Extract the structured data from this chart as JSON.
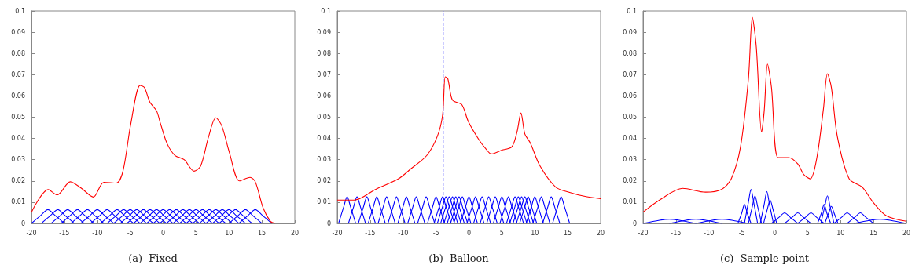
{
  "chart_data": [
    {
      "type": "line",
      "title": "(a)  Fixed",
      "xlim": [
        -20,
        20
      ],
      "xticks": [
        -20,
        -15,
        -10,
        -5,
        0,
        5,
        10,
        15,
        20
      ],
      "ylim": [
        0,
        0.1
      ],
      "yticks": [
        0,
        0.01,
        0.02,
        0.03,
        0.04,
        0.05,
        0.06,
        0.07,
        0.08,
        0.09,
        0.1
      ],
      "series": [
        {
          "color": "#0000ff",
          "x": [
            -20,
            -18.5,
            -17.5,
            -16.5,
            -15
          ],
          "values": [
            0,
            0.004,
            0.0065,
            0.004,
            0
          ]
        },
        {
          "color": "#0000ff",
          "x": [
            -18.5,
            -17,
            -16,
            -15,
            -13.5
          ],
          "values": [
            0,
            0.004,
            0.0065,
            0.004,
            0
          ]
        },
        {
          "color": "#0000ff",
          "x": [
            -17,
            -15.5,
            -14.5,
            -13.5,
            -12
          ],
          "values": [
            0,
            0.004,
            0.0065,
            0.004,
            0
          ]
        },
        {
          "color": "#0000ff",
          "x": [
            -15.5,
            -14,
            -13,
            -12,
            -10.5
          ],
          "values": [
            0,
            0.004,
            0.0065,
            0.004,
            0
          ]
        },
        {
          "color": "#0000ff",
          "x": [
            -14,
            -12.5,
            -11.5,
            -10.5,
            -9
          ],
          "values": [
            0,
            0.004,
            0.0065,
            0.004,
            0
          ]
        },
        {
          "color": "#0000ff",
          "x": [
            -12.5,
            -11,
            -10,
            -9,
            -7.5
          ],
          "values": [
            0,
            0.004,
            0.0065,
            0.004,
            0
          ]
        },
        {
          "color": "#0000ff",
          "x": [
            -11,
            -9.5,
            -8.5,
            -7.5,
            -6
          ],
          "values": [
            0,
            0.004,
            0.0065,
            0.004,
            0
          ]
        },
        {
          "color": "#0000ff",
          "x": [
            -9.5,
            -8,
            -7,
            -6,
            -4.5
          ],
          "values": [
            0,
            0.004,
            0.0065,
            0.004,
            0
          ]
        },
        {
          "color": "#0000ff",
          "x": [
            -8.5,
            -7,
            -6,
            -5,
            -3.5
          ],
          "values": [
            0,
            0.004,
            0.0065,
            0.004,
            0
          ]
        },
        {
          "color": "#0000ff",
          "x": [
            -7.5,
            -6,
            -5,
            -4,
            -2.5
          ],
          "values": [
            0,
            0.004,
            0.0065,
            0.004,
            0
          ]
        },
        {
          "color": "#0000ff",
          "x": [
            -6.5,
            -5,
            -4,
            -3,
            -1.5
          ],
          "values": [
            0,
            0.004,
            0.0065,
            0.004,
            0
          ]
        },
        {
          "color": "#0000ff",
          "x": [
            -5.5,
            -4,
            -3,
            -2,
            -0.5
          ],
          "values": [
            0,
            0.004,
            0.0065,
            0.004,
            0
          ]
        },
        {
          "color": "#0000ff",
          "x": [
            -4.5,
            -3,
            -2,
            -1,
            0.5
          ],
          "values": [
            0,
            0.004,
            0.0065,
            0.004,
            0
          ]
        },
        {
          "color": "#0000ff",
          "x": [
            -3.5,
            -2,
            -1,
            0,
            1.5
          ],
          "values": [
            0,
            0.004,
            0.0065,
            0.004,
            0
          ]
        },
        {
          "color": "#0000ff",
          "x": [
            -2.5,
            -1,
            0,
            1,
            2.5
          ],
          "values": [
            0,
            0.004,
            0.0065,
            0.004,
            0
          ]
        },
        {
          "color": "#0000ff",
          "x": [
            -1.5,
            0,
            1,
            2,
            3.5
          ],
          "values": [
            0,
            0.004,
            0.0065,
            0.004,
            0
          ]
        },
        {
          "color": "#0000ff",
          "x": [
            -0.5,
            1,
            2,
            3,
            4.5
          ],
          "values": [
            0,
            0.004,
            0.0065,
            0.004,
            0
          ]
        },
        {
          "color": "#0000ff",
          "x": [
            0.5,
            2,
            3,
            4,
            5.5
          ],
          "values": [
            0,
            0.004,
            0.0065,
            0.004,
            0
          ]
        },
        {
          "color": "#0000ff",
          "x": [
            1.5,
            3,
            4,
            5,
            6.5
          ],
          "values": [
            0,
            0.004,
            0.0065,
            0.004,
            0
          ]
        },
        {
          "color": "#0000ff",
          "x": [
            2.5,
            4,
            5,
            6,
            7.5
          ],
          "values": [
            0,
            0.004,
            0.0065,
            0.004,
            0
          ]
        },
        {
          "color": "#0000ff",
          "x": [
            3.5,
            5,
            6,
            7,
            8.5
          ],
          "values": [
            0,
            0.004,
            0.0065,
            0.004,
            0
          ]
        },
        {
          "color": "#0000ff",
          "x": [
            4.5,
            6,
            7,
            8,
            9.5
          ],
          "values": [
            0,
            0.004,
            0.0065,
            0.004,
            0
          ]
        },
        {
          "color": "#0000ff",
          "x": [
            5.5,
            7,
            8,
            9,
            10.5
          ],
          "values": [
            0,
            0.004,
            0.0065,
            0.004,
            0
          ]
        },
        {
          "color": "#0000ff",
          "x": [
            6.5,
            8,
            9,
            10,
            11.5
          ],
          "values": [
            0,
            0.004,
            0.0065,
            0.004,
            0
          ]
        },
        {
          "color": "#0000ff",
          "x": [
            7.5,
            9,
            10,
            11,
            12.5
          ],
          "values": [
            0,
            0.004,
            0.0065,
            0.004,
            0
          ]
        },
        {
          "color": "#0000ff",
          "x": [
            8.5,
            10,
            11,
            12,
            13.5
          ],
          "values": [
            0,
            0.004,
            0.0065,
            0.004,
            0
          ]
        },
        {
          "color": "#0000ff",
          "x": [
            10,
            11.5,
            12.5,
            13.5,
            15
          ],
          "values": [
            0,
            0.004,
            0.0065,
            0.004,
            0
          ]
        },
        {
          "color": "#0000ff",
          "x": [
            11.5,
            13,
            14,
            15,
            16.5
          ],
          "values": [
            0,
            0.004,
            0.0065,
            0.004,
            0
          ]
        },
        {
          "color": "#ff0000",
          "x": [
            -20,
            -17.45,
            -16.1,
            -14.1,
            -12.4,
            -10.6,
            -9,
            -7.1,
            -6.1,
            -4.9,
            -3.5,
            -2.85,
            -2,
            -1,
            -0.4,
            0.6,
            1.8,
            3.2,
            4.7,
            5.7,
            6.9,
            8,
            8.9,
            10.1,
            11.6,
            13.2,
            14,
            15.2,
            16.3,
            17
          ],
          "values": [
            0.0053,
            0.0159,
            0.0134,
            0.0196,
            0.0165,
            0.0124,
            0.0194,
            0.019,
            0.0246,
            0.047,
            0.065,
            0.064,
            0.057,
            0.053,
            0.047,
            0.0376,
            0.032,
            0.03,
            0.0246,
            0.027,
            0.0407,
            0.0497,
            0.046,
            0.033,
            0.02,
            0.0217,
            0.0196,
            0.0072,
            0.001,
            0
          ]
        }
      ]
    },
    {
      "type": "line",
      "title": "(b)  Balloon",
      "xlim": [
        -20,
        20
      ],
      "xticks": [
        -20,
        -15,
        -10,
        -5,
        0,
        5,
        10,
        15,
        20
      ],
      "ylim": [
        0,
        0.1
      ],
      "yticks": [
        0,
        0.01,
        0.02,
        0.03,
        0.04,
        0.05,
        0.06,
        0.07,
        0.08,
        0.09,
        0.1
      ],
      "ref_lines": [
        {
          "axis": "x",
          "value": -3.9,
          "color": "#6666ff",
          "line_style": "dashed"
        }
      ],
      "series": [
        {
          "color": "#0000ff",
          "x": [
            -19.8,
            -19,
            -18.5,
            -18,
            -17.2
          ],
          "values": [
            0,
            0.008,
            0.0125,
            0.008,
            0
          ]
        },
        {
          "color": "#0000ff",
          "x": [
            -18.3,
            -17.5,
            -17,
            -16.5,
            -15.7
          ],
          "values": [
            0,
            0.008,
            0.0125,
            0.008,
            0
          ]
        },
        {
          "color": "#0000ff",
          "x": [
            -16.8,
            -16,
            -15.5,
            -15,
            -14.2
          ],
          "values": [
            0,
            0.008,
            0.0125,
            0.008,
            0
          ]
        },
        {
          "color": "#0000ff",
          "x": [
            -15.3,
            -14.5,
            -14,
            -13.5,
            -12.7
          ],
          "values": [
            0,
            0.008,
            0.0125,
            0.008,
            0
          ]
        },
        {
          "color": "#0000ff",
          "x": [
            -13.8,
            -13,
            -12.5,
            -12,
            -11.2
          ],
          "values": [
            0,
            0.008,
            0.0125,
            0.008,
            0
          ]
        },
        {
          "color": "#0000ff",
          "x": [
            -12.3,
            -11.5,
            -11,
            -10.5,
            -9.7
          ],
          "values": [
            0,
            0.008,
            0.0125,
            0.008,
            0
          ]
        },
        {
          "color": "#0000ff",
          "x": [
            -10.8,
            -10,
            -9.5,
            -9,
            -8.2
          ],
          "values": [
            0,
            0.008,
            0.0125,
            0.008,
            0
          ]
        },
        {
          "color": "#0000ff",
          "x": [
            -9.3,
            -8.5,
            -8,
            -7.5,
            -6.7
          ],
          "values": [
            0,
            0.008,
            0.0125,
            0.008,
            0
          ]
        },
        {
          "color": "#0000ff",
          "x": [
            -7.8,
            -7,
            -6.5,
            -6,
            -5.2
          ],
          "values": [
            0,
            0.008,
            0.0125,
            0.008,
            0
          ]
        },
        {
          "color": "#0000ff",
          "x": [
            -6.3,
            -5.5,
            -5,
            -4.5,
            -3.7
          ],
          "values": [
            0,
            0.008,
            0.0125,
            0.008,
            0
          ]
        },
        {
          "color": "#0000ff",
          "x": [
            -5.3,
            -4.5,
            -4,
            -3.5,
            -2.7
          ],
          "values": [
            0,
            0.008,
            0.0125,
            0.008,
            0
          ]
        },
        {
          "color": "#0000ff",
          "x": [
            -4.8,
            -4,
            -3.5,
            -3,
            -2.2
          ],
          "values": [
            0,
            0.008,
            0.0125,
            0.008,
            0
          ]
        },
        {
          "color": "#0000ff",
          "x": [
            -4.3,
            -3.5,
            -3,
            -2.5,
            -1.7
          ],
          "values": [
            0,
            0.008,
            0.0125,
            0.008,
            0
          ]
        },
        {
          "color": "#0000ff",
          "x": [
            -3.8,
            -3,
            -2.5,
            -2,
            -1.2
          ],
          "values": [
            0,
            0.008,
            0.0125,
            0.008,
            0
          ]
        },
        {
          "color": "#0000ff",
          "x": [
            -3.3,
            -2.5,
            -2,
            -1.5,
            -0.7
          ],
          "values": [
            0,
            0.008,
            0.0125,
            0.008,
            0
          ]
        },
        {
          "color": "#0000ff",
          "x": [
            -2.8,
            -2,
            -1.5,
            -1,
            -0.2
          ],
          "values": [
            0,
            0.008,
            0.0125,
            0.008,
            0
          ]
        },
        {
          "color": "#0000ff",
          "x": [
            -2.3,
            -1.5,
            -1,
            -0.5,
            0.3
          ],
          "values": [
            0,
            0.008,
            0.0125,
            0.008,
            0
          ]
        },
        {
          "color": "#0000ff",
          "x": [
            -1.3,
            -0.5,
            0,
            0.5,
            1.3
          ],
          "values": [
            0,
            0.008,
            0.0125,
            0.008,
            0
          ]
        },
        {
          "color": "#0000ff",
          "x": [
            -0.3,
            0.5,
            1,
            1.5,
            2.3
          ],
          "values": [
            0,
            0.008,
            0.0125,
            0.008,
            0
          ]
        },
        {
          "color": "#0000ff",
          "x": [
            0.7,
            1.5,
            2,
            2.5,
            3.3
          ],
          "values": [
            0,
            0.008,
            0.0125,
            0.008,
            0
          ]
        },
        {
          "color": "#0000ff",
          "x": [
            1.7,
            2.5,
            3,
            3.5,
            4.3
          ],
          "values": [
            0,
            0.008,
            0.0125,
            0.008,
            0
          ]
        },
        {
          "color": "#0000ff",
          "x": [
            2.7,
            3.5,
            4,
            4.5,
            5.3
          ],
          "values": [
            0,
            0.008,
            0.0125,
            0.008,
            0
          ]
        },
        {
          "color": "#0000ff",
          "x": [
            3.7,
            4.5,
            5,
            5.5,
            6.3
          ],
          "values": [
            0,
            0.008,
            0.0125,
            0.008,
            0
          ]
        },
        {
          "color": "#0000ff",
          "x": [
            4.7,
            5.5,
            6,
            6.5,
            7.3
          ],
          "values": [
            0,
            0.008,
            0.0125,
            0.008,
            0
          ]
        },
        {
          "color": "#0000ff",
          "x": [
            5.7,
            6.5,
            7,
            7.5,
            8.3
          ],
          "values": [
            0,
            0.008,
            0.0125,
            0.008,
            0
          ]
        },
        {
          "color": "#0000ff",
          "x": [
            6.2,
            7,
            7.5,
            8,
            8.8
          ],
          "values": [
            0,
            0.008,
            0.0125,
            0.008,
            0
          ]
        },
        {
          "color": "#0000ff",
          "x": [
            6.7,
            7.5,
            8,
            8.5,
            9.3
          ],
          "values": [
            0,
            0.008,
            0.0125,
            0.008,
            0
          ]
        },
        {
          "color": "#0000ff",
          "x": [
            7.2,
            8,
            8.5,
            9,
            9.8
          ],
          "values": [
            0,
            0.008,
            0.0125,
            0.008,
            0
          ]
        },
        {
          "color": "#0000ff",
          "x": [
            7.7,
            8.5,
            9,
            9.5,
            10.3
          ],
          "values": [
            0,
            0.008,
            0.0125,
            0.008,
            0
          ]
        },
        {
          "color": "#0000ff",
          "x": [
            8.7,
            9.5,
            10,
            10.5,
            11.3
          ],
          "values": [
            0,
            0.008,
            0.0125,
            0.008,
            0
          ]
        },
        {
          "color": "#0000ff",
          "x": [
            9.7,
            10.5,
            11,
            11.5,
            12.3
          ],
          "values": [
            0,
            0.008,
            0.0125,
            0.008,
            0
          ]
        },
        {
          "color": "#0000ff",
          "x": [
            11.2,
            12,
            12.5,
            13,
            13.8
          ],
          "values": [
            0,
            0.008,
            0.0125,
            0.008,
            0
          ]
        },
        {
          "color": "#0000ff",
          "x": [
            12.7,
            13.5,
            14,
            14.5,
            15.3
          ],
          "values": [
            0,
            0.008,
            0.0125,
            0.008,
            0
          ]
        },
        {
          "color": "#ff0000",
          "x": [
            -20,
            -17.4,
            -14.2,
            -10.7,
            -8.7,
            -6.4,
            -4.8,
            -4,
            -3.6,
            -3.2,
            -2.5,
            -1.1,
            -0.1,
            1.5,
            2.6,
            3.4,
            5,
            6.5,
            7.3,
            7.9,
            8.5,
            9.3,
            10.8,
            13.2,
            15.2,
            17.5,
            20
          ],
          "values": [
            0.011,
            0.011,
            0.016,
            0.021,
            0.026,
            0.032,
            0.041,
            0.051,
            0.069,
            0.068,
            0.058,
            0.056,
            0.048,
            0.0395,
            0.035,
            0.0327,
            0.0345,
            0.036,
            0.043,
            0.052,
            0.042,
            0.038,
            0.027,
            0.017,
            0.0147,
            0.0128,
            0.0116
          ]
        }
      ]
    },
    {
      "type": "line",
      "title": "(c)  Sample-point",
      "xlim": [
        -20,
        20
      ],
      "xticks": [
        -20,
        -15,
        -10,
        -5,
        0,
        5,
        10,
        15,
        20
      ],
      "ylim": [
        0,
        0.1
      ],
      "yticks": [
        0,
        0.01,
        0.02,
        0.03,
        0.04,
        0.05,
        0.06,
        0.07,
        0.08,
        0.09,
        0.1
      ],
      "series": [
        {
          "color": "#0000ff",
          "x": [
            -20,
            -17.5,
            -16,
            -14.5,
            -12
          ],
          "values": [
            0,
            0.0015,
            0.002,
            0.0015,
            0
          ]
        },
        {
          "color": "#0000ff",
          "x": [
            -16,
            -13.5,
            -12,
            -10.5,
            -8
          ],
          "values": [
            0,
            0.0015,
            0.002,
            0.0015,
            0
          ]
        },
        {
          "color": "#0000ff",
          "x": [
            -12,
            -9.5,
            -8,
            -6.5,
            -4
          ],
          "values": [
            0,
            0.0015,
            0.002,
            0.0015,
            0
          ]
        },
        {
          "color": "#0000ff",
          "x": [
            12,
            14.5,
            16,
            17.5,
            20
          ],
          "values": [
            0,
            0.0015,
            0.002,
            0.0015,
            0
          ]
        },
        {
          "color": "#0000ff",
          "x": [
            -0.5,
            0.7,
            1.5,
            2.3,
            3.5
          ],
          "values": [
            0,
            0.003,
            0.005,
            0.003,
            0
          ]
        },
        {
          "color": "#0000ff",
          "x": [
            1.5,
            2.7,
            3.5,
            4.3,
            5.5
          ],
          "values": [
            0,
            0.003,
            0.005,
            0.003,
            0
          ]
        },
        {
          "color": "#0000ff",
          "x": [
            3.5,
            4.7,
            5.5,
            6.3,
            7.5
          ],
          "values": [
            0,
            0.003,
            0.005,
            0.003,
            0
          ]
        },
        {
          "color": "#0000ff",
          "x": [
            9,
            10.2,
            11,
            11.8,
            13
          ],
          "values": [
            0,
            0.003,
            0.005,
            0.003,
            0
          ]
        },
        {
          "color": "#0000ff",
          "x": [
            11,
            12.2,
            13,
            13.8,
            15
          ],
          "values": [
            0,
            0.003,
            0.005,
            0.003,
            0
          ]
        },
        {
          "color": "#0000ff",
          "x": [
            -5.6,
            -5,
            -4.6,
            -4.2,
            -3.6
          ],
          "values": [
            0,
            0.005,
            0.009,
            0.005,
            0
          ]
        },
        {
          "color": "#0000ff",
          "x": [
            -4.6,
            -4,
            -3.6,
            -3.2,
            -2.6
          ],
          "values": [
            0,
            0.01,
            0.016,
            0.01,
            0
          ]
        },
        {
          "color": "#0000ff",
          "x": [
            -4,
            -3.4,
            -3,
            -2.6,
            -2
          ],
          "values": [
            0,
            0.008,
            0.013,
            0.008,
            0
          ]
        },
        {
          "color": "#0000ff",
          "x": [
            -2.2,
            -1.6,
            -1.2,
            -0.8,
            -0.2
          ],
          "values": [
            0,
            0.009,
            0.015,
            0.009,
            0
          ]
        },
        {
          "color": "#0000ff",
          "x": [
            -1.7,
            -1.1,
            -0.7,
            -0.3,
            0.3
          ],
          "values": [
            0,
            0.007,
            0.011,
            0.007,
            0
          ]
        },
        {
          "color": "#0000ff",
          "x": [
            6.5,
            7.1,
            7.5,
            7.9,
            8.5
          ],
          "values": [
            0,
            0.005,
            0.009,
            0.005,
            0
          ]
        },
        {
          "color": "#0000ff",
          "x": [
            7,
            7.6,
            8,
            8.4,
            9
          ],
          "values": [
            0,
            0.008,
            0.013,
            0.008,
            0
          ]
        },
        {
          "color": "#0000ff",
          "x": [
            7.6,
            8.2,
            8.6,
            9,
            9.6
          ],
          "values": [
            0,
            0.005,
            0.008,
            0.005,
            0
          ]
        },
        {
          "color": "#ff0000",
          "x": [
            -20,
            -17.5,
            -14,
            -10.5,
            -8.1,
            -6.6,
            -5.2,
            -4,
            -3.4,
            -2.8,
            -2,
            -1.6,
            -1.1,
            -0.5,
            0.5,
            2.1,
            3.5,
            4.4,
            5.4,
            6.4,
            7.4,
            8,
            8.6,
            9.5,
            11.3,
            13.3,
            15,
            17,
            20
          ],
          "values": [
            0.0053,
            0.011,
            0.0165,
            0.0147,
            0.016,
            0.021,
            0.036,
            0.068,
            0.097,
            0.083,
            0.043,
            0.053,
            0.075,
            0.064,
            0.031,
            0.031,
            0.028,
            0.023,
            0.021,
            0.031,
            0.054,
            0.0705,
            0.064,
            0.041,
            0.021,
            0.017,
            0.0097,
            0.0035,
            0.001
          ]
        }
      ]
    }
  ]
}
